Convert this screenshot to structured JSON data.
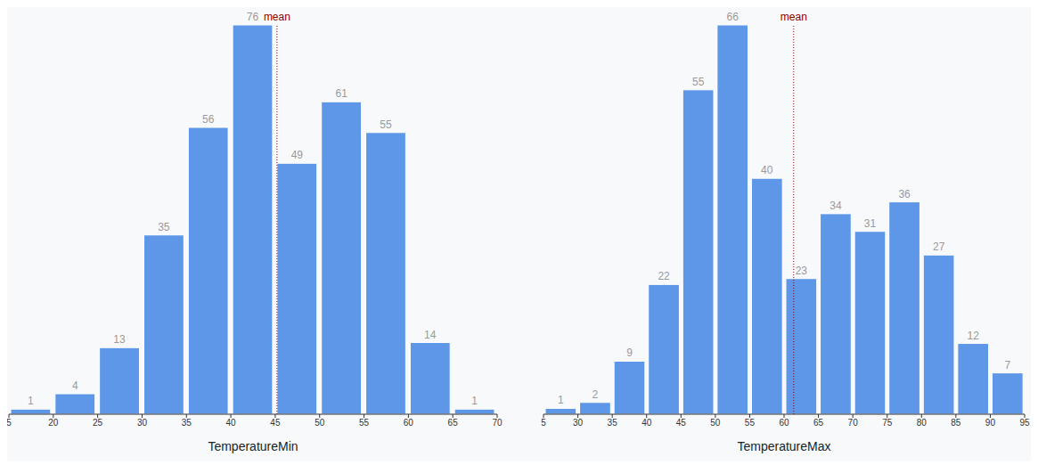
{
  "chart_data": [
    {
      "type": "histogram",
      "x_label": "TemperatureMin",
      "bins": [
        5,
        20,
        25,
        30,
        35,
        40,
        45,
        50,
        55,
        60,
        65,
        70
      ],
      "values": [
        1,
        4,
        13,
        35,
        56,
        76,
        49,
        61,
        55,
        14,
        1
      ],
      "color": "#5e97e8",
      "ylim": [
        0,
        76
      ],
      "xticks": [
        5,
        20,
        25,
        30,
        35,
        40,
        45,
        50,
        55,
        60,
        65,
        70
      ],
      "data_labels": true,
      "tick_labels": "x",
      "annotations": [
        {
          "text": "mean",
          "x": 45.2,
          "color": "#8b0000",
          "line_style": "dotted"
        }
      ]
    },
    {
      "type": "histogram",
      "x_label": "TemperatureMax",
      "bins": [
        5,
        30,
        35,
        40,
        45,
        50,
        55,
        60,
        65,
        70,
        75,
        80,
        85,
        90,
        95
      ],
      "values": [
        1,
        2,
        9,
        22,
        55,
        66,
        40,
        23,
        34,
        31,
        36,
        27,
        12,
        7
      ],
      "color": "#5e97e8",
      "ylim": [
        0,
        66
      ],
      "xticks": [
        5,
        30,
        35,
        40,
        45,
        50,
        55,
        60,
        65,
        70,
        75,
        80,
        85,
        90,
        95
      ],
      "data_labels": true,
      "tick_labels": "x",
      "annotations": [
        {
          "text": "mean",
          "x": 61.4,
          "color": "#8b0000",
          "line_style": "dotted"
        }
      ]
    }
  ]
}
